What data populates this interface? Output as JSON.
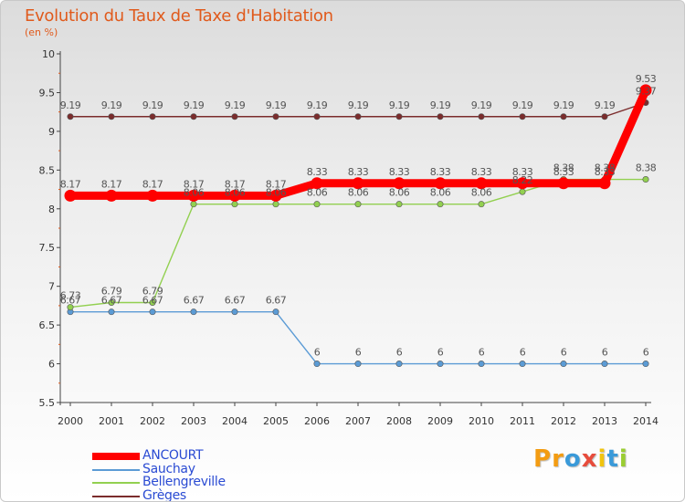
{
  "title": "Evolution du Taux de Taxe d'Habitation",
  "unit": "(en %)",
  "logo": {
    "text": "Proxiti",
    "letter_colors": [
      "#f39c12",
      "#f39c12",
      "#3a9ad9",
      "#e74c3c",
      "#f1c40f",
      "#3a9ad9",
      "#9acd32"
    ]
  },
  "chart_data": {
    "type": "line",
    "title": "Evolution du Taux de Taxe d'Habitation",
    "ylabel": "(en %)",
    "xlabel": "",
    "x": [
      "2000",
      "2001",
      "2002",
      "2003",
      "2004",
      "2005",
      "2006",
      "2007",
      "2008",
      "2009",
      "2010",
      "2011",
      "2012",
      "2013",
      "2014"
    ],
    "ylim": [
      5.5,
      10
    ],
    "yticks": [
      "5.5",
      "6",
      "6.5",
      "7",
      "7.5",
      "8",
      "8.5",
      "9",
      "9.5",
      "10"
    ],
    "grid": false,
    "series": [
      {
        "name": "ANCOURT",
        "color": "#ff0000",
        "emphasis": true,
        "values": [
          8.17,
          8.17,
          8.17,
          8.17,
          8.17,
          8.17,
          8.33,
          8.33,
          8.33,
          8.33,
          8.33,
          8.33,
          8.33,
          8.33,
          9.53
        ],
        "labels": [
          "8.17",
          "8.17",
          "8.17",
          "8.17",
          "8.17",
          "8.17",
          "8.33",
          "8.33",
          "8.33",
          "8.33",
          "8.33",
          "8.33",
          "8.33",
          "8.33",
          "9.53"
        ]
      },
      {
        "name": "Sauchay",
        "color": "#5b9bd5",
        "emphasis": false,
        "values": [
          6.67,
          6.67,
          6.67,
          6.67,
          6.67,
          6.67,
          6,
          6,
          6,
          6,
          6,
          6,
          6,
          6,
          6
        ],
        "labels": [
          "6.67",
          "6.67",
          "6.67",
          "6.67",
          "6.67",
          "6.67",
          "6",
          "6",
          "6",
          "6",
          "6",
          "6",
          "6",
          "6",
          "6"
        ]
      },
      {
        "name": "Bellengreville",
        "color": "#92d050",
        "emphasis": false,
        "values": [
          6.73,
          6.79,
          6.79,
          8.06,
          8.06,
          8.06,
          8.06,
          8.06,
          8.06,
          8.06,
          8.06,
          8.22,
          8.38,
          8.38,
          8.38
        ],
        "labels": [
          "6.73",
          "6.79",
          "6.79",
          "8.06",
          "8.06",
          "8.06",
          "8.06",
          "8.06",
          "8.06",
          "8.06",
          "8.06",
          "8.22",
          "8.38",
          "8.38",
          "8.38"
        ]
      },
      {
        "name": "Grèges",
        "color": "#7b2c2c",
        "emphasis": false,
        "values": [
          9.19,
          9.19,
          9.19,
          9.19,
          9.19,
          9.19,
          9.19,
          9.19,
          9.19,
          9.19,
          9.19,
          9.19,
          9.19,
          9.19,
          9.37
        ],
        "labels": [
          "9.19",
          "9.19",
          "9.19",
          "9.19",
          "9.19",
          "9.19",
          "9.19",
          "9.19",
          "9.19",
          "9.19",
          "9.19",
          "9.19",
          "9.19",
          "9.19",
          "9.37"
        ]
      }
    ]
  }
}
